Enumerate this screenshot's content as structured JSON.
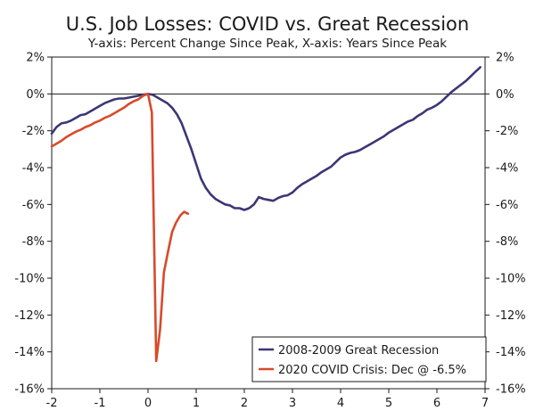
{
  "chart_data": {
    "type": "line",
    "title": "U.S. Job Losses: COVID vs. Great Recession",
    "subtitle": "Y-axis: Percent Change Since Peak, X-axis: Years Since Peak",
    "xlim": [
      -2,
      7
    ],
    "ylim": [
      -16,
      2
    ],
    "x_ticks": [
      -2,
      -1,
      0,
      1,
      2,
      3,
      4,
      5,
      6,
      7
    ],
    "x_tick_labels": [
      "-2",
      "-1",
      "0",
      "1",
      "2",
      "3",
      "4",
      "5",
      "6",
      "7"
    ],
    "y_ticks": [
      2,
      0,
      -2,
      -4,
      -6,
      -8,
      -10,
      -12,
      -14,
      -16
    ],
    "y_tick_labels": [
      "2%",
      "0%",
      "-2%",
      "-4%",
      "-6%",
      "-8%",
      "-10%",
      "-12%",
      "-14%",
      "-16%"
    ],
    "zero_line": true,
    "legend_position": "bottom-right",
    "series": [
      {
        "name": "2008-2009 Great Recession",
        "color": "#3b3675",
        "points": [
          [
            -2.0,
            -2.15
          ],
          [
            -1.9,
            -1.8
          ],
          [
            -1.8,
            -1.6
          ],
          [
            -1.7,
            -1.55
          ],
          [
            -1.6,
            -1.45
          ],
          [
            -1.5,
            -1.3
          ],
          [
            -1.4,
            -1.15
          ],
          [
            -1.3,
            -1.1
          ],
          [
            -1.2,
            -0.95
          ],
          [
            -1.1,
            -0.8
          ],
          [
            -1.0,
            -0.65
          ],
          [
            -0.9,
            -0.5
          ],
          [
            -0.8,
            -0.4
          ],
          [
            -0.7,
            -0.3
          ],
          [
            -0.6,
            -0.25
          ],
          [
            -0.5,
            -0.25
          ],
          [
            -0.4,
            -0.2
          ],
          [
            -0.3,
            -0.15
          ],
          [
            -0.2,
            -0.1
          ],
          [
            -0.1,
            -0.05
          ],
          [
            0.0,
            0.0
          ],
          [
            0.1,
            -0.05
          ],
          [
            0.2,
            -0.2
          ],
          [
            0.3,
            -0.35
          ],
          [
            0.4,
            -0.5
          ],
          [
            0.5,
            -0.75
          ],
          [
            0.6,
            -1.1
          ],
          [
            0.7,
            -1.6
          ],
          [
            0.8,
            -2.3
          ],
          [
            0.9,
            -3.0
          ],
          [
            1.0,
            -3.8
          ],
          [
            1.1,
            -4.6
          ],
          [
            1.2,
            -5.1
          ],
          [
            1.3,
            -5.45
          ],
          [
            1.4,
            -5.7
          ],
          [
            1.5,
            -5.85
          ],
          [
            1.6,
            -6.0
          ],
          [
            1.7,
            -6.05
          ],
          [
            1.8,
            -6.2
          ],
          [
            1.9,
            -6.2
          ],
          [
            2.0,
            -6.3
          ],
          [
            2.1,
            -6.2
          ],
          [
            2.2,
            -6.0
          ],
          [
            2.3,
            -5.6
          ],
          [
            2.4,
            -5.7
          ],
          [
            2.5,
            -5.75
          ],
          [
            2.6,
            -5.8
          ],
          [
            2.7,
            -5.65
          ],
          [
            2.8,
            -5.55
          ],
          [
            2.9,
            -5.5
          ],
          [
            3.0,
            -5.35
          ],
          [
            3.1,
            -5.1
          ],
          [
            3.2,
            -4.9
          ],
          [
            3.3,
            -4.75
          ],
          [
            3.4,
            -4.6
          ],
          [
            3.5,
            -4.45
          ],
          [
            3.6,
            -4.25
          ],
          [
            3.7,
            -4.1
          ],
          [
            3.8,
            -3.95
          ],
          [
            3.9,
            -3.7
          ],
          [
            4.0,
            -3.45
          ],
          [
            4.1,
            -3.3
          ],
          [
            4.2,
            -3.2
          ],
          [
            4.3,
            -3.15
          ],
          [
            4.4,
            -3.05
          ],
          [
            4.5,
            -2.9
          ],
          [
            4.6,
            -2.75
          ],
          [
            4.7,
            -2.6
          ],
          [
            4.8,
            -2.45
          ],
          [
            4.9,
            -2.3
          ],
          [
            5.0,
            -2.1
          ],
          [
            5.1,
            -1.95
          ],
          [
            5.2,
            -1.8
          ],
          [
            5.3,
            -1.65
          ],
          [
            5.4,
            -1.5
          ],
          [
            5.5,
            -1.4
          ],
          [
            5.6,
            -1.2
          ],
          [
            5.7,
            -1.05
          ],
          [
            5.8,
            -0.85
          ],
          [
            5.9,
            -0.75
          ],
          [
            6.0,
            -0.6
          ],
          [
            6.1,
            -0.4
          ],
          [
            6.2,
            -0.15
          ],
          [
            6.3,
            0.1
          ],
          [
            6.4,
            0.3
          ],
          [
            6.5,
            0.5
          ],
          [
            6.6,
            0.7
          ],
          [
            6.7,
            0.95
          ],
          [
            6.8,
            1.2
          ],
          [
            6.9,
            1.45
          ]
        ]
      },
      {
        "name": "2020 COVID Crisis: Dec @ -6.5%",
        "color": "#d84a2b",
        "points": [
          [
            -2.0,
            -2.85
          ],
          [
            -1.9,
            -2.7
          ],
          [
            -1.8,
            -2.55
          ],
          [
            -1.7,
            -2.35
          ],
          [
            -1.6,
            -2.2
          ],
          [
            -1.5,
            -2.05
          ],
          [
            -1.4,
            -1.95
          ],
          [
            -1.3,
            -1.8
          ],
          [
            -1.2,
            -1.7
          ],
          [
            -1.1,
            -1.55
          ],
          [
            -1.0,
            -1.45
          ],
          [
            -0.9,
            -1.3
          ],
          [
            -0.8,
            -1.2
          ],
          [
            -0.7,
            -1.05
          ],
          [
            -0.6,
            -0.9
          ],
          [
            -0.5,
            -0.75
          ],
          [
            -0.4,
            -0.55
          ],
          [
            -0.3,
            -0.4
          ],
          [
            -0.2,
            -0.3
          ],
          [
            -0.1,
            -0.1
          ],
          [
            0.0,
            0.0
          ],
          [
            0.08,
            -1.0
          ],
          [
            0.17,
            -14.5
          ],
          [
            0.25,
            -12.8
          ],
          [
            0.33,
            -9.7
          ],
          [
            0.42,
            -8.5
          ],
          [
            0.5,
            -7.5
          ],
          [
            0.58,
            -7.0
          ],
          [
            0.67,
            -6.6
          ],
          [
            0.75,
            -6.4
          ],
          [
            0.83,
            -6.5
          ]
        ]
      }
    ]
  }
}
